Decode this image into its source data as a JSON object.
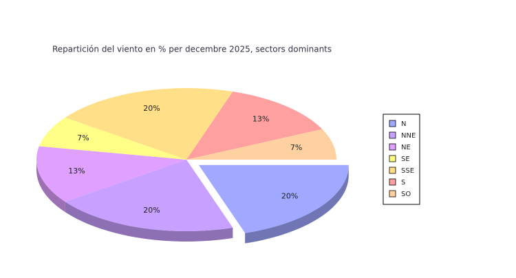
{
  "chart_data": {
    "type": "pie",
    "title": "Repartición del viento en % per decembre 2025, sectors dominants",
    "categories": [
      "N",
      "NNE",
      "NE",
      "SE",
      "SSE",
      "S",
      "SO"
    ],
    "values": [
      20,
      20,
      13,
      7,
      20,
      13,
      7
    ],
    "value_labels": [
      "20%",
      "20%",
      "13%",
      "7%",
      "20%",
      "13%",
      "7%"
    ],
    "colors": [
      "#a0a8ff",
      "#c8a0ff",
      "#e0a0ff",
      "#ffff88",
      "#ffe088",
      "#ffa0a0",
      "#ffd0a0"
    ],
    "exploded": [
      0
    ],
    "legend": "right"
  }
}
